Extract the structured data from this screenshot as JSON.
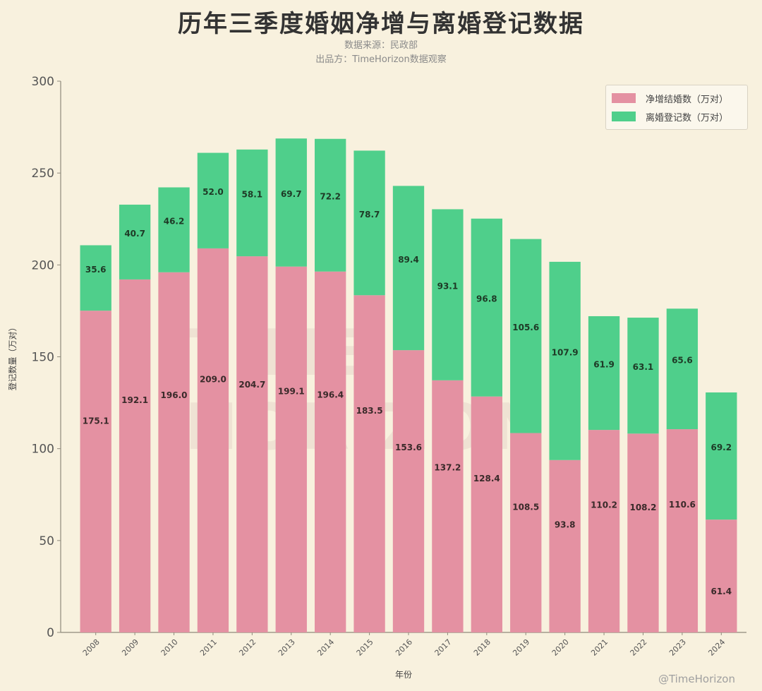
{
  "chart_data": {
    "type": "bar",
    "stacked": true,
    "title": "历年三季度婚姻净增与离婚登记数据",
    "subtitle_lines": [
      "数据来源：民政部",
      "出品方：TimeHorizon数据观察"
    ],
    "xlabel": "年份",
    "ylabel": "登记数量（万对）",
    "ylim": [
      0,
      300
    ],
    "yticks": [
      0,
      50,
      100,
      150,
      200,
      250,
      300
    ],
    "categories": [
      "2008",
      "2009",
      "2010",
      "2011",
      "2012",
      "2013",
      "2014",
      "2015",
      "2016",
      "2017",
      "2018",
      "2019",
      "2020",
      "2021",
      "2022",
      "2023",
      "2024"
    ],
    "series": [
      {
        "name": "净增结婚数（万对）",
        "color": "#e491a2",
        "values": [
          175.1,
          192.1,
          196.0,
          209.0,
          204.7,
          199.1,
          196.4,
          183.5,
          153.6,
          137.2,
          128.4,
          108.5,
          93.8,
          110.2,
          108.2,
          110.6,
          61.4
        ],
        "labels": [
          "175.1",
          "192.1",
          "196.0",
          "209.0",
          "204.7",
          "199.1",
          "196.4",
          "183.5",
          "153.6",
          "137.2",
          "128.4",
          "108.5",
          "93.8",
          "110.2",
          "108.2",
          "110.6",
          "61.4"
        ]
      },
      {
        "name": "离婚登记数（万对）",
        "color": "#4fcf8b",
        "values": [
          35.6,
          40.7,
          46.2,
          52.0,
          58.1,
          69.7,
          72.2,
          78.7,
          89.4,
          93.1,
          96.8,
          105.6,
          107.9,
          61.9,
          63.1,
          65.6,
          69.2
        ],
        "labels": [
          "35.6",
          "40.7",
          "46.2",
          "52.0",
          "58.1",
          "69.7",
          "72.2",
          "78.7",
          "89.4",
          "93.1",
          "96.8",
          "105.6",
          "107.9",
          "61.9",
          "63.1",
          "65.6",
          "69.2"
        ]
      }
    ],
    "legend_position": "top-right",
    "grid": false
  },
  "watermark": "TIME HORIZON",
  "footer_watermark": "@TimeHorizon"
}
